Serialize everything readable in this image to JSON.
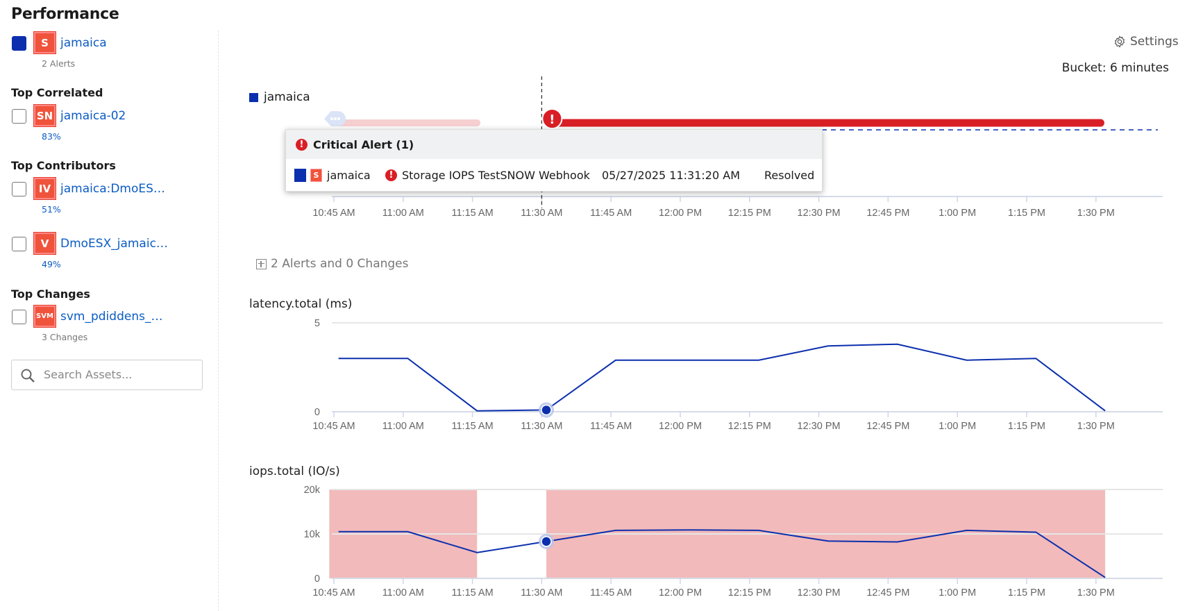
{
  "page_title": "Performance",
  "sidebar": {
    "primary": {
      "icon_label": "S",
      "name": "jamaica",
      "sub": "2 Alerts",
      "color": "#0b2fad",
      "checked": true
    },
    "sections": [
      {
        "title": "Top Correlated",
        "items": [
          {
            "icon_label": "SN",
            "name": "jamaica-02",
            "sub": "83%"
          }
        ]
      },
      {
        "title": "Top Contributors",
        "items": [
          {
            "icon_label": "IV",
            "name": "jamaica:DmoES…",
            "sub": "51%"
          },
          {
            "icon_label": "V",
            "name": "DmoESX_jamaic…",
            "sub": "49%"
          }
        ]
      },
      {
        "title": "Top Changes",
        "items": [
          {
            "icon_label": "SVM",
            "name": "svm_pdiddens_…",
            "sub": "3 Changes"
          }
        ]
      }
    ],
    "search_placeholder": "Search Assets..."
  },
  "header": {
    "settings_label": "Settings",
    "bucket_label": "Bucket: 6 minutes"
  },
  "timeline": {
    "legend": "jamaica",
    "series_color": "#0b2fad",
    "cursor_time": "11:30 AM",
    "bars": [
      {
        "start": "10:45 AM",
        "end": "11:16 AM",
        "color": "#f6cfd0",
        "marker": "cluster"
      },
      {
        "start": "11:32 AM",
        "end": "1:31 PM",
        "color": "#d91f26",
        "marker": "critical"
      }
    ],
    "tooltip": {
      "header": "Critical Alert (1)",
      "row": {
        "asset_icon": "S",
        "asset": "jamaica",
        "alert": "Storage IOPS TestSNOW Webhook",
        "time": "05/27/2025 11:31:20 AM",
        "status": "Resolved"
      }
    }
  },
  "alerts_summary": "2 Alerts and 0 Changes",
  "x_ticks": [
    "10:45 AM",
    "11:00 AM",
    "11:15 AM",
    "11:30 AM",
    "11:45 AM",
    "12:00 PM",
    "12:15 PM",
    "12:30 PM",
    "12:45 PM",
    "1:00 PM",
    "1:15 PM",
    "1:30 PM"
  ],
  "chart_data": [
    {
      "type": "line",
      "title": "latency.total (ms)",
      "ylim": [
        0,
        5
      ],
      "y_ticks": [
        "0",
        "5"
      ],
      "x": [
        "10:46 AM",
        "11:01 AM",
        "11:16 AM",
        "11:31 AM",
        "11:46 AM",
        "12:02 PM",
        "12:17 PM",
        "12:32 PM",
        "12:47 PM",
        "1:02 PM",
        "1:17 PM",
        "1:32 PM"
      ],
      "values": [
        3.0,
        3.0,
        0.05,
        0.1,
        2.9,
        2.9,
        2.9,
        3.7,
        3.8,
        2.9,
        3.0,
        0.05
      ],
      "highlight_point": "11:31 AM",
      "color": "#0b2fad",
      "grid": true
    },
    {
      "type": "line",
      "title": "iops.total (IO/s)",
      "ylim": [
        0,
        20000
      ],
      "y_ticks": [
        "0",
        "10k",
        "20k"
      ],
      "x": [
        "10:46 AM",
        "11:01 AM",
        "11:16 AM",
        "11:31 AM",
        "11:46 AM",
        "12:02 PM",
        "12:17 PM",
        "12:32 PM",
        "12:47 PM",
        "1:02 PM",
        "1:17 PM",
        "1:32 PM"
      ],
      "values": [
        10500,
        10500,
        5800,
        8300,
        10800,
        10900,
        10800,
        8400,
        8200,
        10800,
        10400,
        200
      ],
      "highlight_point": "11:31 AM",
      "shaded_ranges": [
        [
          "10:44 AM",
          "11:16 AM"
        ],
        [
          "11:31 AM",
          "1:32 PM"
        ]
      ],
      "shade_color": "#f2babb",
      "color": "#0b2fad",
      "grid": true
    }
  ]
}
